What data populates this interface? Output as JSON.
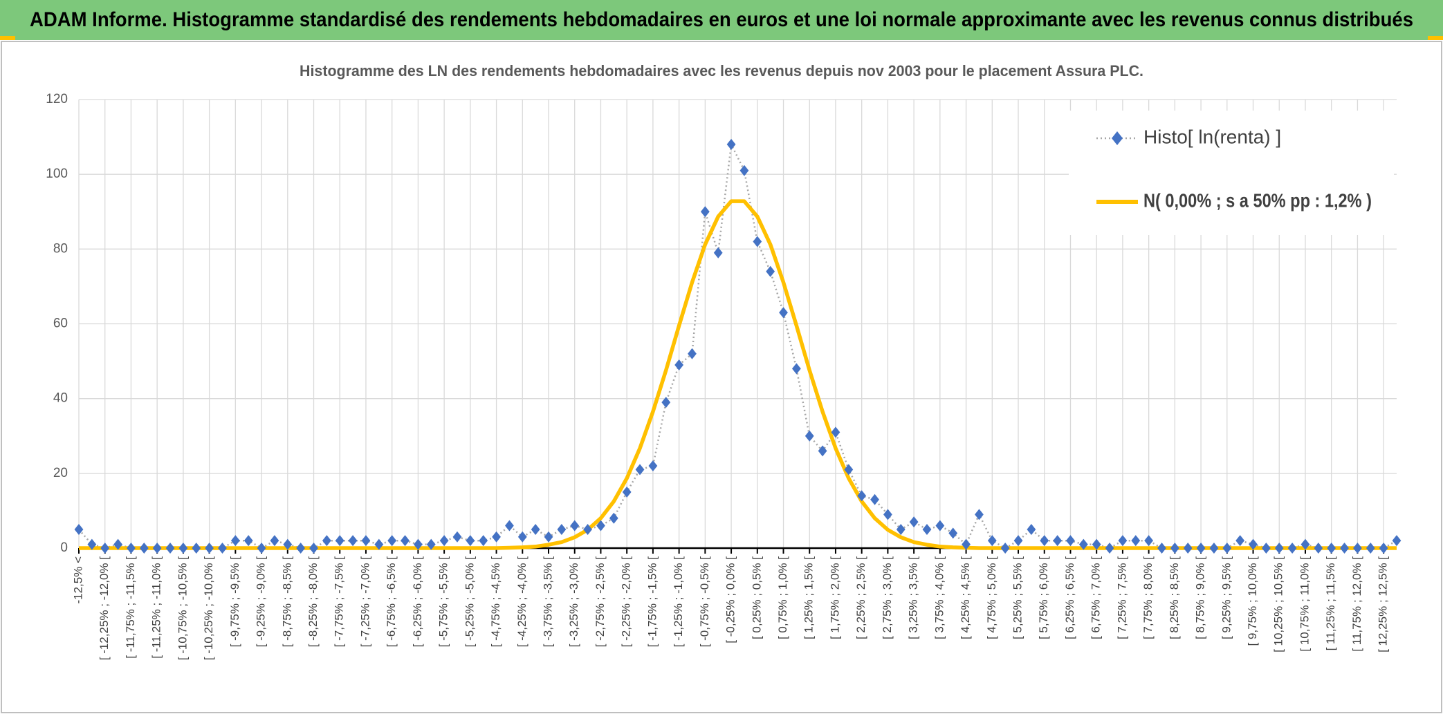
{
  "chart_data": {
    "type": "line",
    "header": "ADAM Informe. Histogramme standardisé des rendements hebdomadaires en euros et une loi normale approximante avec les revenus connus distribués",
    "title": "Histogramme des LN des rendements hebdomadaires avec les revenus depuis nov 2003 pour le placement Assura PLC.",
    "categories": [
      "-12,5% <",
      null,
      "[ -12,25% ; -12,0% [",
      null,
      "[ -11,75% ; -11,5% [",
      null,
      "[ -11,25% ; -11,0% [",
      null,
      "[ -10,75% ; -10,5% [",
      null,
      "[ -10,25% ; -10,0% [",
      null,
      "[ -9,75% ; -9,5% [",
      null,
      "[ -9,25% ; -9,0% [",
      null,
      "[ -8,75% ; -8,5% [",
      null,
      "[ -8,25% ; -8,0% [",
      null,
      "[ -7,75% ; -7,5% [",
      null,
      "[ -7,25% ; -7,0% [",
      null,
      "[ -6,75% ; -6,5% [",
      null,
      "[ -6,25% ; -6,0% [",
      null,
      "[ -5,75% ; -5,5% [",
      null,
      "[ -5,25% ; -5,0% [",
      null,
      "[ -4,75% ; -4,5% [",
      null,
      "[ -4,25% ; -4,0% [",
      null,
      "[ -3,75% ; -3,5% [",
      null,
      "[ -3,25% ; -3,0% [",
      null,
      "[ -2,75% ; -2,5% [",
      null,
      "[ -2,25% ; -2,0% [",
      null,
      "[ -1,75% ; -1,5% [",
      null,
      "[ -1,25% ; -1,0% [",
      null,
      "[ -0,75% ; -0,5% [",
      null,
      "[ -0,25% ; 0,0% [",
      null,
      "[ 0,25% ; 0,5% [",
      null,
      "[ 0,75% ; 1,0% [",
      null,
      "[ 1,25% ; 1,5% [",
      null,
      "[ 1,75% ; 2,0% [",
      null,
      "[ 2,25% ; 2,5% [",
      null,
      "[ 2,75% ; 3,0% [",
      null,
      "[ 3,25% ; 3,5% [",
      null,
      "[ 3,75% ; 4,0% [",
      null,
      "[ 4,25% ; 4,5% [",
      null,
      "[ 4,75% ; 5,0% [",
      null,
      "[ 5,25% ; 5,5% [",
      null,
      "[ 5,75% ; 6,0% [",
      null,
      "[ 6,25% ; 6,5% [",
      null,
      "[ 6,75% ; 7,0% [",
      null,
      "[ 7,25% ; 7,5% [",
      null,
      "[ 7,75% ; 8,0% [",
      null,
      "[ 8,25% ; 8,5% [",
      null,
      "[ 8,75% ; 9,0% [",
      null,
      "[ 9,25% ; 9,5% [",
      null,
      "[ 9,75% ; 10,0% [",
      null,
      "[ 10,25% ; 10,5% [",
      null,
      "[ 10,75% ; 11,0% [",
      null,
      "[ 11,25% ; 11,5% [",
      null,
      "[ 11,75% ; 12,0% [",
      null,
      "[ 12,25% ; 12,5% [",
      null
    ],
    "series": [
      {
        "name": "Histo[ ln(renta) ]",
        "color": "#4472c4",
        "line_color": "#a6a6a6",
        "values": [
          5,
          1,
          0,
          1,
          0,
          0,
          0,
          0,
          0,
          0,
          0,
          0,
          2,
          2,
          0,
          2,
          1,
          0,
          0,
          2,
          2,
          2,
          2,
          1,
          2,
          2,
          1,
          1,
          2,
          3,
          2,
          2,
          3,
          6,
          3,
          5,
          3,
          5,
          6,
          5,
          6,
          8,
          15,
          21,
          22,
          39,
          49,
          52,
          90,
          79,
          108,
          101,
          82,
          74,
          63,
          48,
          30,
          26,
          31,
          21,
          14,
          13,
          9,
          5,
          7,
          5,
          6,
          4,
          1,
          9,
          2,
          0,
          2,
          5,
          2,
          2,
          2,
          1,
          1,
          0,
          2,
          2,
          2,
          0,
          0,
          0,
          0,
          0,
          0,
          2,
          1,
          0,
          0,
          0,
          1,
          0,
          0,
          0,
          0,
          0,
          0,
          2
        ]
      },
      {
        "name": "N( 0,00% ; s a 50% pp : 1,2% )",
        "color": "#ffc000",
        "values": [
          0,
          0,
          0,
          0,
          0,
          0,
          0,
          0,
          0,
          0,
          0,
          0,
          0,
          0,
          0,
          0,
          0,
          0,
          0,
          0,
          0,
          0,
          0,
          0,
          0,
          0,
          0,
          0,
          0,
          0,
          0,
          0,
          0,
          0.1,
          0.2,
          0.4,
          0.9,
          1.6,
          2.9,
          4.9,
          8.0,
          12.5,
          18.7,
          26.7,
          36.5,
          47.6,
          59.5,
          71.1,
          81.2,
          88.7,
          92.8,
          92.8,
          88.7,
          81.2,
          71.1,
          59.5,
          47.6,
          36.5,
          26.7,
          18.7,
          12.5,
          8.0,
          4.9,
          2.9,
          1.6,
          0.9,
          0.4,
          0.2,
          0.1,
          0,
          0,
          0,
          0,
          0,
          0,
          0,
          0,
          0,
          0,
          0,
          0,
          0,
          0,
          0,
          0,
          0,
          0,
          0,
          0,
          0,
          0,
          0,
          0,
          0,
          0,
          0,
          0,
          0,
          0,
          0,
          0,
          0
        ]
      }
    ],
    "ylim": [
      0,
      120
    ],
    "yticks": [
      0,
      20,
      40,
      60,
      80,
      100,
      120
    ],
    "grid": true,
    "legend": "top-right"
  }
}
